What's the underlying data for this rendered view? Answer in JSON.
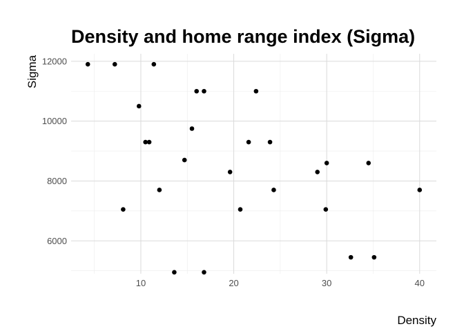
{
  "chart_data": {
    "type": "scatter",
    "title": "Density and home range index (Sigma)",
    "xlabel": "Density",
    "ylabel": "Sigma",
    "xlim": [
      2.5,
      41.8
    ],
    "ylim": [
      4900,
      12250
    ],
    "x_ticks": [
      10,
      20,
      30,
      40
    ],
    "x_tick_labels": [
      "10",
      "20",
      "30",
      "40"
    ],
    "y_ticks": [
      6000,
      8000,
      10000,
      12000
    ],
    "y_tick_labels": [
      "6000",
      "8000",
      "10000",
      "12000"
    ],
    "grid": true,
    "legend": "none",
    "point_color": "#000000",
    "points": [
      {
        "x": 4.3,
        "y": 11900
      },
      {
        "x": 7.2,
        "y": 11900
      },
      {
        "x": 11.4,
        "y": 11900
      },
      {
        "x": 16.0,
        "y": 11000
      },
      {
        "x": 16.8,
        "y": 11000
      },
      {
        "x": 22.4,
        "y": 11000
      },
      {
        "x": 9.8,
        "y": 10500
      },
      {
        "x": 15.5,
        "y": 9750
      },
      {
        "x": 10.5,
        "y": 9300
      },
      {
        "x": 10.9,
        "y": 9300
      },
      {
        "x": 21.6,
        "y": 9300
      },
      {
        "x": 23.9,
        "y": 9300
      },
      {
        "x": 14.7,
        "y": 8700
      },
      {
        "x": 30.0,
        "y": 8600
      },
      {
        "x": 34.5,
        "y": 8600
      },
      {
        "x": 19.6,
        "y": 8300
      },
      {
        "x": 29.0,
        "y": 8300
      },
      {
        "x": 12.0,
        "y": 7700
      },
      {
        "x": 24.3,
        "y": 7700
      },
      {
        "x": 40.0,
        "y": 7700
      },
      {
        "x": 8.1,
        "y": 7050
      },
      {
        "x": 20.7,
        "y": 7050
      },
      {
        "x": 29.9,
        "y": 7050
      },
      {
        "x": 32.6,
        "y": 5450
      },
      {
        "x": 35.1,
        "y": 5450
      },
      {
        "x": 13.6,
        "y": 4950
      },
      {
        "x": 16.8,
        "y": 4950
      }
    ]
  }
}
